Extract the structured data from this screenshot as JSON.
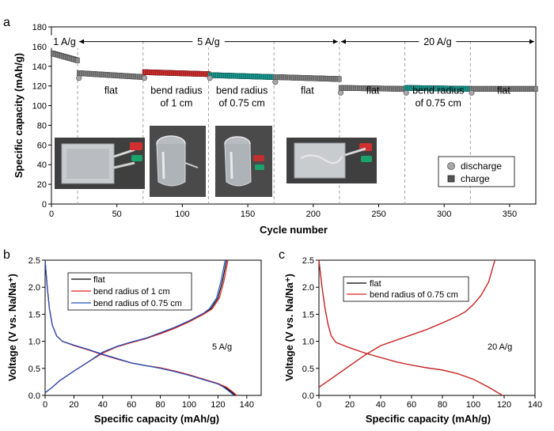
{
  "panel_letters": [
    "a",
    "b",
    "c"
  ],
  "chart_data": [
    {
      "panel": "a",
      "type": "scatter",
      "xlabel": "Cycle number",
      "ylabel": "Specific capacity (mAh/g)",
      "xlim": [
        0,
        370
      ],
      "ylim": [
        0,
        180
      ],
      "xticks": [
        0,
        50,
        100,
        150,
        200,
        250,
        300,
        350
      ],
      "yticks": [
        0,
        20,
        40,
        60,
        80,
        100,
        120,
        140,
        160,
        180
      ],
      "grid": false,
      "legend": {
        "placement": "bottom-right",
        "entries": [
          "discharge",
          "charge"
        ]
      },
      "rate_labels": [
        {
          "text": "1 A/g",
          "x_start": 0,
          "x_end": 20
        },
        {
          "text": "5 A/g",
          "x_start": 20,
          "x_end": 220
        },
        {
          "text": "20 A/g",
          "x_start": 220,
          "x_end": 370
        }
      ],
      "segments": [
        {
          "x_start": 1,
          "x_end": 20,
          "y_start": 153,
          "y_end": 146,
          "color": "#8a8a8a",
          "label": ""
        },
        {
          "x_start": 21,
          "x_end": 70,
          "y_start": 133,
          "y_end": 129,
          "color": "#8a8a8a",
          "label": "flat"
        },
        {
          "x_start": 71,
          "x_end": 120,
          "y_start": 134,
          "y_end": 132,
          "color": "#e03030",
          "label": "bend radius\nof 1 cm"
        },
        {
          "x_start": 121,
          "x_end": 170,
          "y_start": 131,
          "y_end": 129,
          "color": "#1aa39a",
          "label": "bend radius\nof 0.75 cm"
        },
        {
          "x_start": 171,
          "x_end": 220,
          "y_start": 129,
          "y_end": 127,
          "color": "#8a8a8a",
          "label": "flat"
        },
        {
          "x_start": 221,
          "x_end": 270,
          "y_start": 118,
          "y_end": 117,
          "color": "#8a8a8a",
          "label": "flat"
        },
        {
          "x_start": 271,
          "x_end": 320,
          "y_start": 118,
          "y_end": 117,
          "color": "#1aa39a",
          "label": "bend radius\nof 0.75 cm"
        },
        {
          "x_start": 321,
          "x_end": 370,
          "y_start": 117,
          "y_end": 117,
          "color": "#8a8a8a",
          "label": "flat"
        }
      ],
      "outliers": [
        {
          "x": 21,
          "y": 128
        },
        {
          "x": 71,
          "y": 128
        },
        {
          "x": 121,
          "y": 128
        },
        {
          "x": 171,
          "y": 124
        },
        {
          "x": 221,
          "y": 113
        },
        {
          "x": 271,
          "y": 113
        },
        {
          "x": 321,
          "y": 113
        }
      ],
      "dividers": [
        20,
        70,
        120,
        170,
        220,
        270,
        320
      ],
      "photo_captions": [
        "flat",
        "bend radius of 1 cm",
        "bend radius of 0.75 cm",
        "flat"
      ]
    },
    {
      "panel": "b",
      "type": "line",
      "xlabel": "Specific capacity (mAh/g)",
      "ylabel": "Voltage (V vs. Na/Na⁺)",
      "xlim": [
        0,
        150
      ],
      "ylim": [
        0,
        2.5
      ],
      "xticks": [
        0,
        20,
        40,
        60,
        80,
        100,
        120,
        140
      ],
      "yticks": [
        0.0,
        0.5,
        1.0,
        1.5,
        2.0,
        2.5
      ],
      "annotation": "5 A/g",
      "legend": {
        "placement": "top-left"
      },
      "series": [
        {
          "name": "flat",
          "color": "#000000",
          "discharge": [
            [
              0,
              2.5
            ],
            [
              1.5,
              2.0
            ],
            [
              3,
              1.6
            ],
            [
              5,
              1.3
            ],
            [
              8,
              1.1
            ],
            [
              12,
              1.0
            ],
            [
              20,
              0.93
            ],
            [
              30,
              0.85
            ],
            [
              40,
              0.76
            ],
            [
              50,
              0.68
            ],
            [
              60,
              0.6
            ],
            [
              70,
              0.55
            ],
            [
              80,
              0.51
            ],
            [
              90,
              0.45
            ],
            [
              100,
              0.38
            ],
            [
              110,
              0.3
            ],
            [
              120,
              0.22
            ],
            [
              125,
              0.15
            ],
            [
              130,
              0.05
            ],
            [
              132,
              0.0
            ]
          ],
          "charge": [
            [
              0,
              0.05
            ],
            [
              5,
              0.15
            ],
            [
              10,
              0.27
            ],
            [
              20,
              0.45
            ],
            [
              30,
              0.62
            ],
            [
              40,
              0.8
            ],
            [
              50,
              0.9
            ],
            [
              60,
              0.98
            ],
            [
              70,
              1.05
            ],
            [
              80,
              1.15
            ],
            [
              90,
              1.25
            ],
            [
              100,
              1.37
            ],
            [
              110,
              1.5
            ],
            [
              115,
              1.6
            ],
            [
              120,
              1.8
            ],
            [
              123,
              2.1
            ],
            [
              126,
              2.5
            ]
          ]
        },
        {
          "name": "bend radius of 1 cm",
          "color": "#e02020",
          "discharge": [
            [
              0,
              2.5
            ],
            [
              1.5,
              2.0
            ],
            [
              3,
              1.6
            ],
            [
              5,
              1.3
            ],
            [
              8,
              1.1
            ],
            [
              12,
              1.0
            ],
            [
              20,
              0.92
            ],
            [
              30,
              0.84
            ],
            [
              40,
              0.75
            ],
            [
              50,
              0.67
            ],
            [
              60,
              0.6
            ],
            [
              70,
              0.55
            ],
            [
              80,
              0.51
            ],
            [
              90,
              0.45
            ],
            [
              100,
              0.38
            ],
            [
              110,
              0.3
            ],
            [
              120,
              0.22
            ],
            [
              126,
              0.15
            ],
            [
              131,
              0.05
            ],
            [
              133,
              0.0
            ]
          ],
          "charge": [
            [
              0,
              0.05
            ],
            [
              5,
              0.15
            ],
            [
              10,
              0.27
            ],
            [
              20,
              0.45
            ],
            [
              30,
              0.62
            ],
            [
              40,
              0.78
            ],
            [
              50,
              0.9
            ],
            [
              60,
              0.98
            ],
            [
              70,
              1.05
            ],
            [
              80,
              1.14
            ],
            [
              90,
              1.24
            ],
            [
              100,
              1.36
            ],
            [
              110,
              1.5
            ],
            [
              116,
              1.6
            ],
            [
              121,
              1.8
            ],
            [
              124,
              2.1
            ],
            [
              127,
              2.5
            ]
          ]
        },
        {
          "name": "bend radius of 0.75 cm",
          "color": "#2050c0",
          "discharge": [
            [
              0,
              2.5
            ],
            [
              1.5,
              2.0
            ],
            [
              3,
              1.6
            ],
            [
              5,
              1.3
            ],
            [
              8,
              1.1
            ],
            [
              12,
              1.0
            ],
            [
              20,
              0.93
            ],
            [
              30,
              0.85
            ],
            [
              40,
              0.76
            ],
            [
              50,
              0.68
            ],
            [
              60,
              0.6
            ],
            [
              70,
              0.55
            ],
            [
              80,
              0.5
            ],
            [
              90,
              0.44
            ],
            [
              100,
              0.37
            ],
            [
              110,
              0.29
            ],
            [
              120,
              0.21
            ],
            [
              124,
              0.15
            ],
            [
              129,
              0.05
            ],
            [
              131,
              0.0
            ]
          ],
          "charge": [
            [
              0,
              0.05
            ],
            [
              5,
              0.15
            ],
            [
              10,
              0.27
            ],
            [
              20,
              0.45
            ],
            [
              30,
              0.62
            ],
            [
              40,
              0.8
            ],
            [
              50,
              0.91
            ],
            [
              60,
              0.99
            ],
            [
              70,
              1.06
            ],
            [
              80,
              1.16
            ],
            [
              90,
              1.26
            ],
            [
              100,
              1.38
            ],
            [
              110,
              1.52
            ],
            [
              114,
              1.6
            ],
            [
              119,
              1.8
            ],
            [
              122,
              2.1
            ],
            [
              125,
              2.5
            ]
          ]
        }
      ]
    },
    {
      "panel": "c",
      "type": "line",
      "xlabel": "Specific capacity (mAh/g)",
      "ylabel": "Voltage (V vs. Na/Na⁺)",
      "xlim": [
        0,
        140
      ],
      "ylim": [
        0,
        2.5
      ],
      "xticks": [
        0,
        20,
        40,
        60,
        80,
        100,
        120,
        140
      ],
      "yticks": [
        0.0,
        0.5,
        1.0,
        1.5,
        2.0,
        2.5
      ],
      "annotation": "20 A/g",
      "legend": {
        "placement": "top-left"
      },
      "series": [
        {
          "name": "flat",
          "color": "#000000",
          "discharge": [
            [
              0,
              2.5
            ],
            [
              2,
              2.0
            ],
            [
              4,
              1.6
            ],
            [
              6,
              1.3
            ],
            [
              8,
              1.1
            ],
            [
              11,
              0.98
            ],
            [
              20,
              0.88
            ],
            [
              30,
              0.78
            ],
            [
              40,
              0.7
            ],
            [
              50,
              0.62
            ],
            [
              60,
              0.56
            ],
            [
              70,
              0.51
            ],
            [
              80,
              0.47
            ],
            [
              90,
              0.4
            ],
            [
              100,
              0.3
            ],
            [
              110,
              0.15
            ],
            [
              116,
              0.05
            ],
            [
              119,
              0.0
            ]
          ],
          "charge": [
            [
              0,
              0.15
            ],
            [
              10,
              0.35
            ],
            [
              20,
              0.55
            ],
            [
              30,
              0.75
            ],
            [
              40,
              0.92
            ],
            [
              50,
              1.02
            ],
            [
              60,
              1.12
            ],
            [
              70,
              1.22
            ],
            [
              80,
              1.34
            ],
            [
              90,
              1.47
            ],
            [
              95,
              1.55
            ],
            [
              100,
              1.68
            ],
            [
              105,
              1.85
            ],
            [
              110,
              2.1
            ],
            [
              114,
              2.5
            ]
          ]
        },
        {
          "name": "bend radius of 0.75 cm",
          "color": "#e02020",
          "discharge": [
            [
              0,
              2.5
            ],
            [
              2,
              2.0
            ],
            [
              4,
              1.6
            ],
            [
              6,
              1.3
            ],
            [
              8,
              1.1
            ],
            [
              11,
              0.98
            ],
            [
              20,
              0.88
            ],
            [
              30,
              0.78
            ],
            [
              40,
              0.7
            ],
            [
              50,
              0.62
            ],
            [
              60,
              0.56
            ],
            [
              70,
              0.51
            ],
            [
              80,
              0.47
            ],
            [
              90,
              0.4
            ],
            [
              100,
              0.3
            ],
            [
              110,
              0.15
            ],
            [
              116,
              0.05
            ],
            [
              119,
              0.0
            ]
          ],
          "charge": [
            [
              0,
              0.15
            ],
            [
              10,
              0.35
            ],
            [
              20,
              0.55
            ],
            [
              30,
              0.75
            ],
            [
              40,
              0.92
            ],
            [
              50,
              1.02
            ],
            [
              60,
              1.12
            ],
            [
              70,
              1.22
            ],
            [
              80,
              1.34
            ],
            [
              90,
              1.47
            ],
            [
              95,
              1.55
            ],
            [
              100,
              1.68
            ],
            [
              105,
              1.85
            ],
            [
              110,
              2.1
            ],
            [
              114,
              2.5
            ]
          ]
        }
      ]
    }
  ]
}
